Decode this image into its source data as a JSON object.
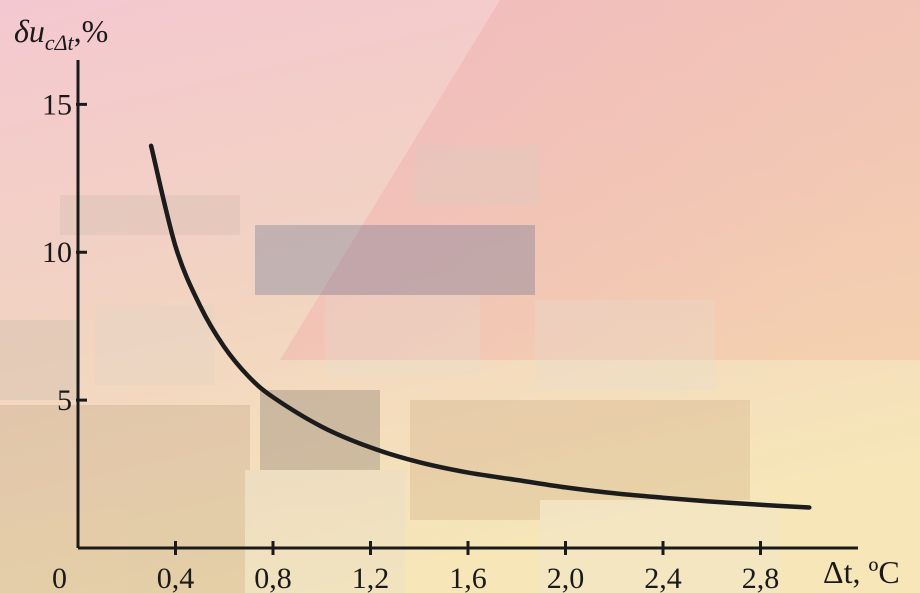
{
  "chart_data": {
    "type": "line",
    "title": "",
    "ylabel": {
      "main": "δu",
      "subscript": "cΔt",
      "suffix": ",%"
    },
    "xlabel": "Δt, ºC",
    "origin_label": "0",
    "xlim": [
      0,
      3.2
    ],
    "ylim": [
      0,
      16.5
    ],
    "x_ticks": [
      0.4,
      0.8,
      1.2,
      1.6,
      2.0,
      2.4,
      2.8
    ],
    "x_tick_labels": [
      "0,4",
      "0,8",
      "1,2",
      "1,6",
      "2,0",
      "2,4",
      "2,8"
    ],
    "y_ticks": [
      5,
      10,
      15
    ],
    "y_tick_labels": [
      "5",
      "10",
      "15"
    ],
    "grid": false,
    "series": [
      {
        "x": [
          0.3,
          0.4,
          0.5,
          0.6,
          0.7,
          0.8,
          1.0,
          1.2,
          1.4,
          1.6,
          1.8,
          2.0,
          2.2,
          2.4,
          2.6,
          2.8,
          3.0
        ],
        "values": [
          13.6,
          10.2,
          8.2,
          6.8,
          5.8,
          5.1,
          4.1,
          3.4,
          2.9,
          2.55,
          2.3,
          2.05,
          1.85,
          1.7,
          1.57,
          1.46,
          1.37
        ]
      }
    ],
    "colors": {
      "line": "#1c1c1c",
      "axis": "#1a1a1a"
    }
  }
}
